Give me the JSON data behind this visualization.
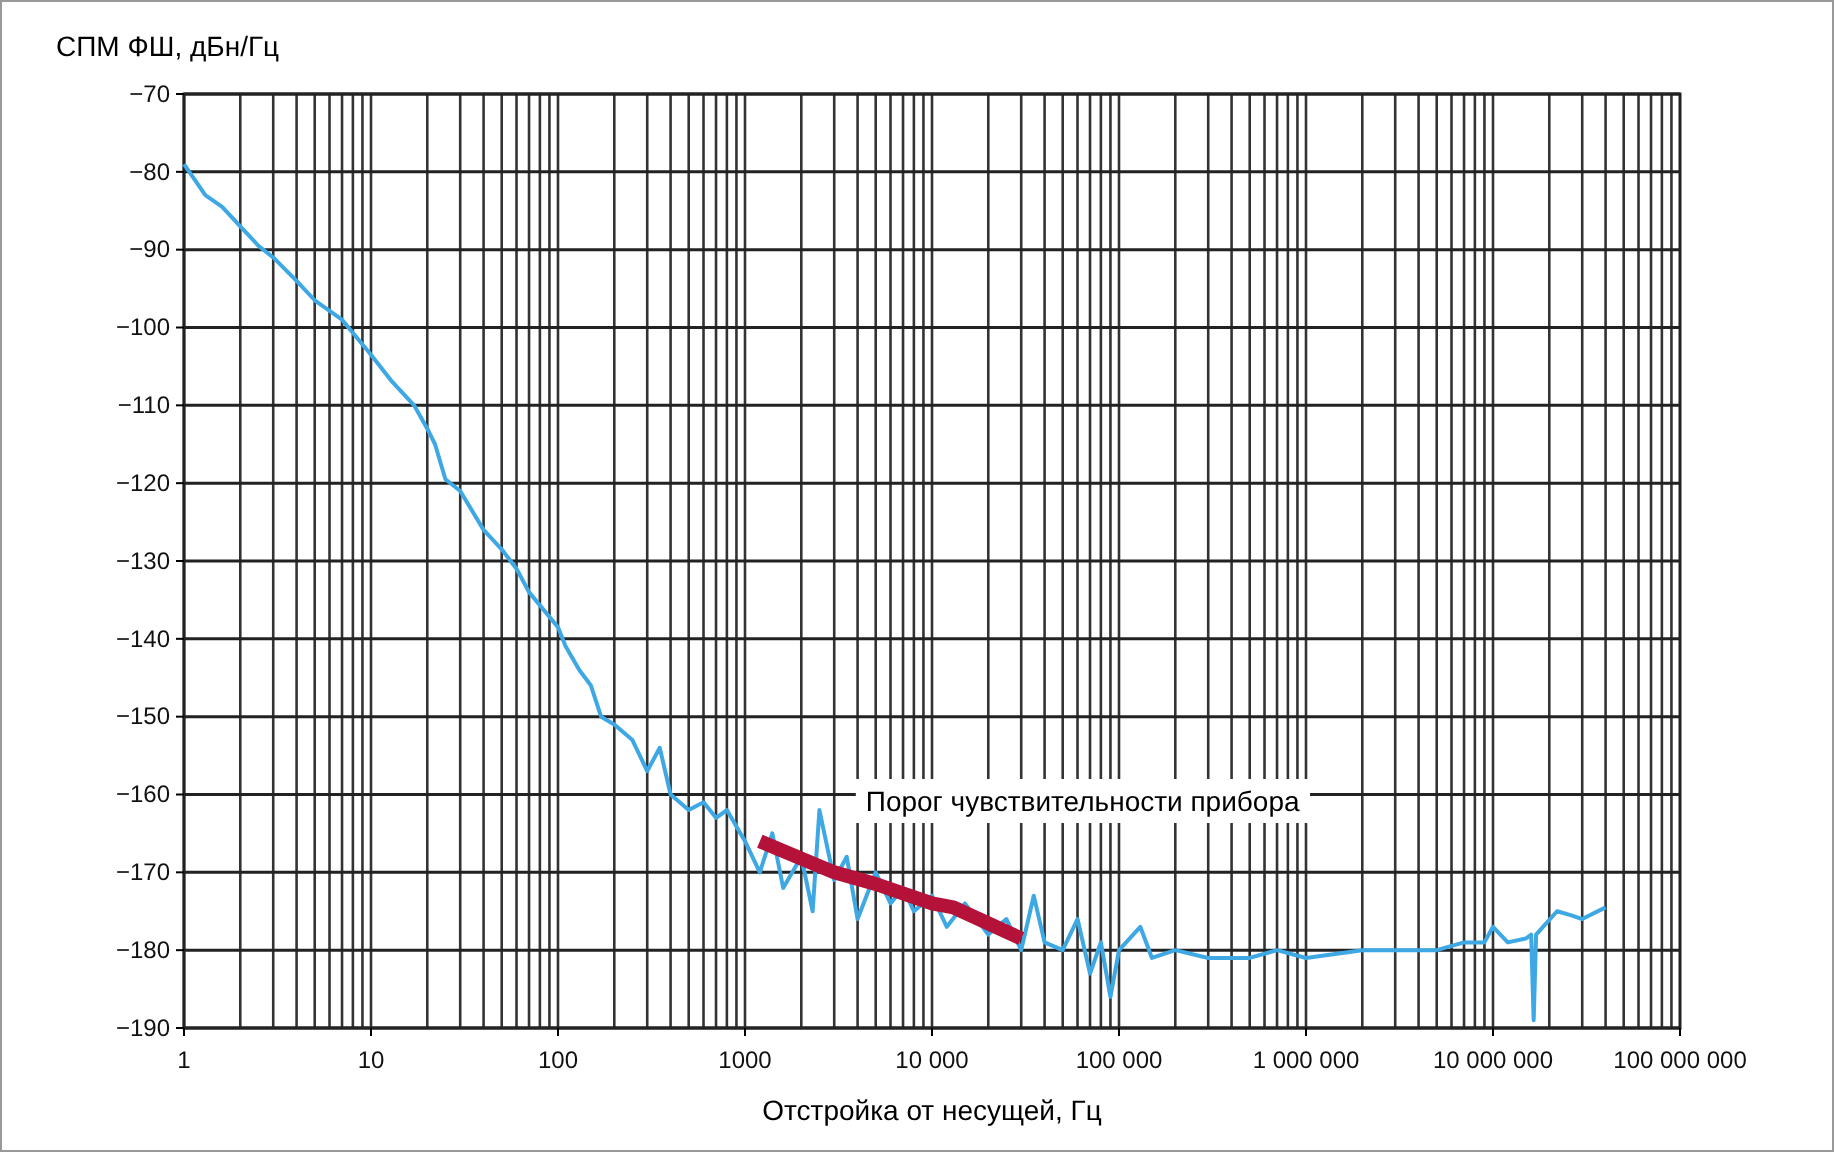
{
  "chart_data": {
    "type": "line",
    "ylabel": "СПМ ФШ, дБн/Гц",
    "xlabel": "Отстройка от несущей, Гц",
    "log": "x",
    "grid": true,
    "marker": "none",
    "line_style": "solid",
    "xlim": [
      1,
      100000000
    ],
    "ylim": [
      -190,
      -70
    ],
    "xticks": [
      1,
      10,
      100,
      1000,
      {
        "value": 10000,
        "label": "10 000"
      },
      {
        "value": 100000,
        "label": "100 000"
      },
      {
        "value": 1000000,
        "label": "1 000 000"
      },
      {
        "value": 10000000,
        "label": "10 000 000"
      },
      {
        "value": 100000000,
        "label": "100 000 000"
      }
    ],
    "yticks": [
      {
        "value": -190,
        "label": "−190"
      },
      {
        "value": -180,
        "label": "−180"
      },
      {
        "value": -170,
        "label": "−170"
      },
      {
        "value": -160,
        "label": "−160"
      },
      {
        "value": -150,
        "label": "−150"
      },
      {
        "value": -140,
        "label": "−140"
      },
      {
        "value": -130,
        "label": "−130"
      },
      {
        "value": -120,
        "label": "−120"
      },
      {
        "value": -110,
        "label": "−110"
      },
      {
        "value": -100,
        "label": "−100"
      },
      {
        "value": -90,
        "label": "−90"
      },
      {
        "value": -80,
        "label": "−80"
      },
      {
        "value": -70,
        "label": "−70"
      }
    ],
    "series": [
      {
        "color": "#3ea8e5",
        "x": [
          1,
          1.3,
          1.6,
          2,
          2.5,
          3,
          4,
          5,
          7,
          10,
          13,
          17,
          20,
          22,
          25,
          30,
          40,
          50,
          60,
          70,
          100,
          110,
          130,
          150,
          170,
          200,
          250,
          300,
          350,
          400,
          500,
          600,
          700,
          800,
          1000,
          1200,
          1400,
          1600,
          2000,
          2300,
          2500,
          3000,
          3500,
          4000,
          5000,
          6000,
          7000,
          8000,
          10000,
          12000,
          15000,
          20000,
          25000,
          30000,
          35000,
          40000,
          50000,
          60000,
          70000,
          80000,
          90000,
          100000,
          130000,
          150000,
          200000,
          300000,
          500000,
          700000,
          1000000,
          2000000,
          3000000,
          5000000,
          7000000,
          9000000,
          10000000,
          12000000,
          15000000,
          16000000,
          16500000,
          17000000,
          22000000,
          26000000,
          30000000,
          40000000
        ],
        "values": [
          -79,
          -83,
          -84.5,
          -87,
          -89.5,
          -91,
          -94,
          -96.5,
          -99,
          -103.5,
          -107,
          -110,
          -113,
          -115,
          -119.5,
          -121,
          -126,
          -128.5,
          -131,
          -134,
          -138.5,
          -141,
          -144,
          -146,
          -150,
          -151,
          -153,
          -157,
          -154,
          -160,
          -162,
          -161,
          -163,
          -162,
          -166,
          -170,
          -165,
          -172,
          -168,
          -175,
          -162,
          -171,
          -168,
          -176,
          -170,
          -174,
          -172,
          -175,
          -173,
          -177,
          -174,
          -178,
          -176,
          -180,
          -173,
          -179,
          -180,
          -176,
          -183,
          -179,
          -186,
          -180,
          -177,
          -181,
          -180,
          -181,
          -181,
          -180,
          -181,
          -180,
          -180,
          -180,
          -179,
          -179,
          -177,
          -179,
          -178.5,
          -178,
          -189,
          -178,
          -175,
          -175.5,
          -176,
          -174.5
        ]
      },
      {
        "name": "Порог чувствительности прибора",
        "color": "#b5123a",
        "x": [
          1200,
          3000,
          5000,
          10000,
          13000,
          30000
        ],
        "values": [
          -166,
          -170,
          -171.5,
          -174,
          -174.5,
          -178.5
        ]
      }
    ]
  }
}
